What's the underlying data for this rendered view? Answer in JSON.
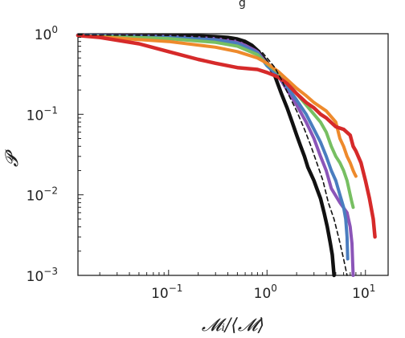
{
  "chart_data": {
    "type": "line",
    "xscale": "log",
    "yscale": "log",
    "xlim": [
      0.012,
      17
    ],
    "ylim": [
      0.001,
      1.0
    ],
    "xlabel": "𝓜ᵢ/⟨𝓜⟩",
    "ylabel": "𝓟",
    "title_fragment": "g",
    "x_ticks": [
      {
        "value": 0.1,
        "base": "10",
        "exp": "−1"
      },
      {
        "value": 1,
        "base": "10",
        "exp": "0"
      },
      {
        "value": 10,
        "base": "10",
        "exp": "1"
      }
    ],
    "y_ticks": [
      {
        "value": 1,
        "base": "10",
        "exp": "0"
      },
      {
        "value": 0.1,
        "base": "10",
        "exp": "−1"
      },
      {
        "value": 0.01,
        "base": "10",
        "exp": "−2"
      },
      {
        "value": 0.001,
        "base": "10",
        "exp": "−3"
      }
    ],
    "series": [
      {
        "color": "#111111",
        "dashed": false,
        "width": 4.5,
        "points": [
          [
            0.012,
            0.96
          ],
          [
            0.05,
            0.955
          ],
          [
            0.1,
            0.95
          ],
          [
            0.2,
            0.94
          ],
          [
            0.3,
            0.92
          ],
          [
            0.4,
            0.9
          ],
          [
            0.5,
            0.86
          ],
          [
            0.6,
            0.8
          ],
          [
            0.7,
            0.72
          ],
          [
            0.8,
            0.62
          ],
          [
            0.9,
            0.52
          ],
          [
            1.0,
            0.44
          ],
          [
            1.2,
            0.3
          ],
          [
            1.4,
            0.18
          ],
          [
            1.6,
            0.12
          ],
          [
            1.8,
            0.08
          ],
          [
            2.0,
            0.055
          ],
          [
            2.2,
            0.04
          ],
          [
            2.4,
            0.03
          ],
          [
            2.6,
            0.022
          ],
          [
            2.8,
            0.018
          ],
          [
            3.0,
            0.015
          ],
          [
            3.2,
            0.012
          ],
          [
            3.5,
            0.009
          ],
          [
            3.8,
            0.006
          ],
          [
            4.1,
            0.004
          ],
          [
            4.4,
            0.0025
          ],
          [
            4.6,
            0.0018
          ],
          [
            4.8,
            0.001
          ]
        ]
      },
      {
        "color": "#8b55b8",
        "dashed": false,
        "width": 4,
        "points": [
          [
            0.012,
            0.96
          ],
          [
            0.1,
            0.93
          ],
          [
            0.3,
            0.87
          ],
          [
            0.5,
            0.8
          ],
          [
            0.8,
            0.6
          ],
          [
            1.0,
            0.42
          ],
          [
            1.3,
            0.3
          ],
          [
            1.6,
            0.2
          ],
          [
            2.0,
            0.13
          ],
          [
            2.5,
            0.08
          ],
          [
            3.0,
            0.05
          ],
          [
            3.5,
            0.03
          ],
          [
            4.0,
            0.02
          ],
          [
            4.5,
            0.012
          ],
          [
            5.5,
            0.008
          ],
          [
            6.5,
            0.006
          ],
          [
            7.0,
            0.004
          ],
          [
            7.3,
            0.0025
          ],
          [
            7.4,
            0.0015
          ],
          [
            7.5,
            0.001
          ]
        ]
      },
      {
        "color": "#4a7dbf",
        "dashed": false,
        "width": 4,
        "points": [
          [
            0.012,
            0.96
          ],
          [
            0.1,
            0.91
          ],
          [
            0.3,
            0.84
          ],
          [
            0.5,
            0.76
          ],
          [
            0.8,
            0.58
          ],
          [
            1.0,
            0.4
          ],
          [
            1.3,
            0.3
          ],
          [
            1.6,
            0.22
          ],
          [
            2.0,
            0.15
          ],
          [
            2.5,
            0.1
          ],
          [
            3.0,
            0.065
          ],
          [
            3.5,
            0.045
          ],
          [
            4.0,
            0.03
          ],
          [
            4.5,
            0.02
          ],
          [
            5.0,
            0.015
          ],
          [
            5.5,
            0.01
          ],
          [
            6.0,
            0.007
          ],
          [
            6.3,
            0.005
          ],
          [
            6.5,
            0.003
          ],
          [
            6.6,
            0.0016
          ]
        ]
      },
      {
        "color": "#77bf62",
        "dashed": false,
        "width": 4,
        "points": [
          [
            0.012,
            0.95
          ],
          [
            0.1,
            0.87
          ],
          [
            0.3,
            0.78
          ],
          [
            0.5,
            0.7
          ],
          [
            0.8,
            0.55
          ],
          [
            1.0,
            0.42
          ],
          [
            1.3,
            0.33
          ],
          [
            1.6,
            0.25
          ],
          [
            2.0,
            0.18
          ],
          [
            2.5,
            0.13
          ],
          [
            3.0,
            0.1
          ],
          [
            3.5,
            0.08
          ],
          [
            4.0,
            0.06
          ],
          [
            4.5,
            0.04
          ],
          [
            5.0,
            0.03
          ],
          [
            5.5,
            0.025
          ],
          [
            6.0,
            0.02
          ],
          [
            6.5,
            0.015
          ],
          [
            7.0,
            0.01
          ],
          [
            7.3,
            0.008
          ],
          [
            7.5,
            0.007
          ]
        ]
      },
      {
        "color": "#ee8a2c",
        "dashed": false,
        "width": 4,
        "points": [
          [
            0.012,
            0.95
          ],
          [
            0.1,
            0.8
          ],
          [
            0.3,
            0.68
          ],
          [
            0.5,
            0.6
          ],
          [
            0.8,
            0.5
          ],
          [
            1.0,
            0.43
          ],
          [
            1.3,
            0.34
          ],
          [
            1.6,
            0.27
          ],
          [
            2.0,
            0.21
          ],
          [
            2.5,
            0.17
          ],
          [
            3.0,
            0.14
          ],
          [
            4.0,
            0.11
          ],
          [
            5.0,
            0.08
          ],
          [
            5.5,
            0.05
          ],
          [
            6.0,
            0.04
          ],
          [
            6.5,
            0.03
          ],
          [
            7.0,
            0.025
          ],
          [
            7.5,
            0.02
          ],
          [
            7.8,
            0.018
          ],
          [
            8.0,
            0.017
          ]
        ]
      },
      {
        "color": "#d62a2a",
        "dashed": false,
        "width": 4.5,
        "points": [
          [
            0.012,
            0.95
          ],
          [
            0.02,
            0.9
          ],
          [
            0.05,
            0.75
          ],
          [
            0.1,
            0.6
          ],
          [
            0.2,
            0.48
          ],
          [
            0.3,
            0.43
          ],
          [
            0.5,
            0.38
          ],
          [
            0.8,
            0.36
          ],
          [
            1.0,
            0.33
          ],
          [
            1.3,
            0.29
          ],
          [
            1.6,
            0.24
          ],
          [
            2.0,
            0.18
          ],
          [
            2.5,
            0.14
          ],
          [
            3.0,
            0.12
          ],
          [
            3.5,
            0.1
          ],
          [
            4.0,
            0.09
          ],
          [
            5.0,
            0.07
          ],
          [
            6.0,
            0.065
          ],
          [
            7.0,
            0.055
          ],
          [
            7.5,
            0.04
          ],
          [
            8.0,
            0.035
          ],
          [
            9.0,
            0.025
          ],
          [
            10.0,
            0.015
          ],
          [
            11.0,
            0.009
          ],
          [
            12.0,
            0.005
          ],
          [
            12.5,
            0.003
          ]
        ]
      },
      {
        "color": "#111111",
        "dashed": true,
        "width": 1.6,
        "points": [
          [
            0.012,
            0.97
          ],
          [
            0.1,
            0.95
          ],
          [
            0.3,
            0.9
          ],
          [
            0.5,
            0.83
          ],
          [
            0.7,
            0.72
          ],
          [
            0.9,
            0.58
          ],
          [
            1.0,
            0.5
          ],
          [
            1.2,
            0.38
          ],
          [
            1.4,
            0.27
          ],
          [
            1.6,
            0.19
          ],
          [
            2.0,
            0.11
          ],
          [
            2.4,
            0.065
          ],
          [
            2.8,
            0.04
          ],
          [
            3.2,
            0.025
          ],
          [
            3.7,
            0.015
          ],
          [
            4.2,
            0.008
          ],
          [
            4.8,
            0.005
          ],
          [
            5.4,
            0.0028
          ],
          [
            6.0,
            0.0016
          ],
          [
            6.5,
            0.001
          ]
        ]
      }
    ]
  }
}
